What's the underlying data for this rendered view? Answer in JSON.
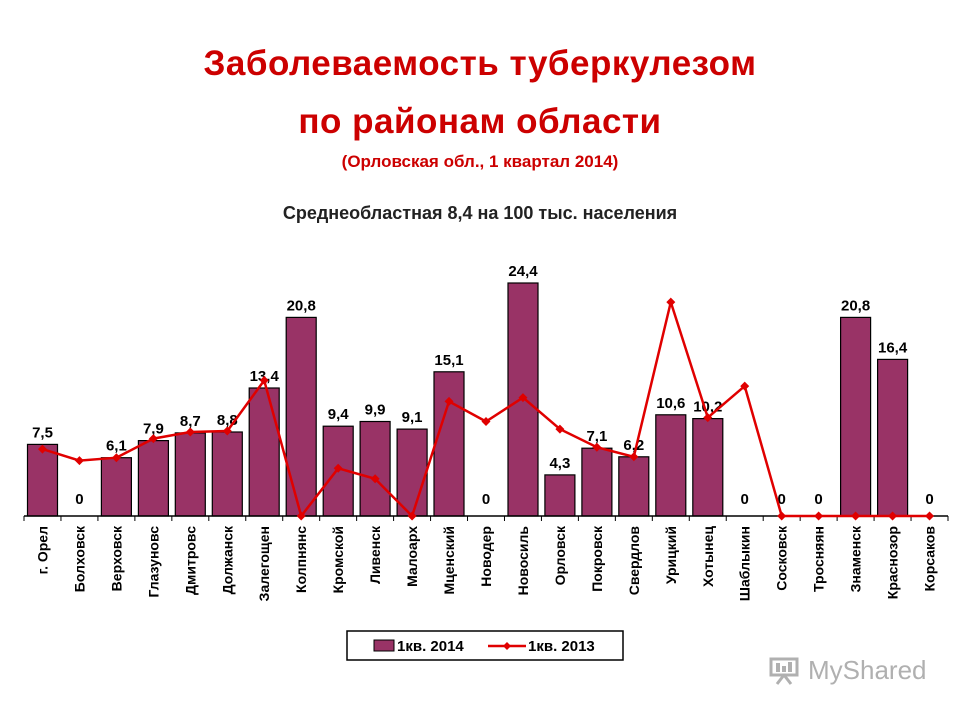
{
  "header": {
    "title_line1": "Заболеваемость туберкулезом",
    "title_line2": "по районам области",
    "subtitle": "(Орловская обл., 1 квартал 2014)",
    "note": "Среднеобластная 8,4 на 100 тыс. населения"
  },
  "chart_data": {
    "type": "bar",
    "categories": [
      "г. Орел",
      "Болховск",
      "Верховск",
      "Глазуновс",
      "Дмитровс",
      "Должанск",
      "Залегощен",
      "Колпнянс",
      "Кромской",
      "Ливенск",
      "Малоарх",
      "Мценский",
      "Новодер",
      "Новосиль",
      "Орловск",
      "Покровск",
      "Свердлов",
      "Урицкий",
      "Хотынец",
      "Шаблыкин",
      "Сосковск",
      "Тросняян",
      "Знаменск",
      "Краснозор",
      "Корсаков"
    ],
    "series": [
      {
        "name": "1кв. 2014",
        "type": "bar",
        "color": "#993366",
        "values": [
          7.5,
          0,
          6.1,
          7.9,
          8.7,
          8.8,
          13.4,
          20.8,
          9.4,
          9.9,
          9.1,
          15.1,
          0,
          24.4,
          4.3,
          7.1,
          6.2,
          10.6,
          10.2,
          0,
          0,
          0,
          20.8,
          16.4,
          0
        ],
        "labels": [
          "7,5",
          "0",
          "6,1",
          "7,9",
          "8,7",
          "8,8",
          "13,4",
          "20,8",
          "9,4",
          "9,9",
          "9,1",
          "15,1",
          "0",
          "24,4",
          "4,3",
          "7,1",
          "6,2",
          "10,6",
          "10,2",
          "0",
          "0",
          "0",
          "20,8",
          "16,4",
          "0"
        ]
      },
      {
        "name": "1кв. 2013",
        "type": "line",
        "color": "#e00000",
        "values": [
          7,
          5.8,
          6.1,
          8.1,
          8.8,
          8.9,
          14.2,
          0,
          5,
          3.9,
          0,
          12,
          9.9,
          12.4,
          9.1,
          7.2,
          6.2,
          22.4,
          10.3,
          13.6,
          0,
          0,
          0,
          0,
          0
        ]
      }
    ],
    "ylim": [
      0,
      27
    ],
    "grid": false,
    "legend": "bottom-center"
  },
  "watermark": {
    "text": "MyShared"
  }
}
